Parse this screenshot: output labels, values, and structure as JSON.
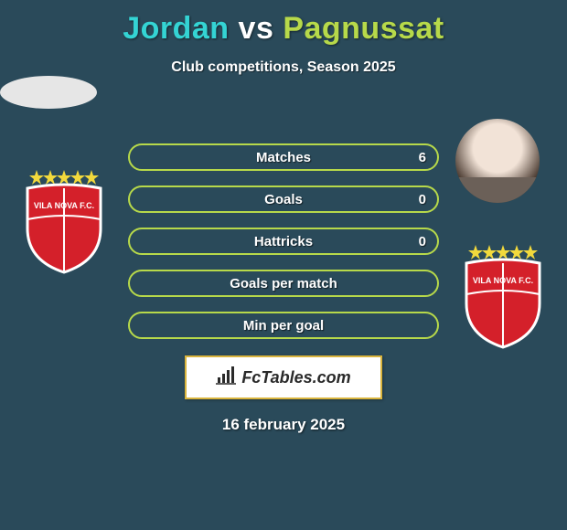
{
  "background_color": "#2a4a5a",
  "title": {
    "player1": "Jordan",
    "vs": "vs",
    "player2": "Pagnussat",
    "player1_color": "#34d4d4",
    "vs_color": "#ffffff",
    "player2_color": "#b7d94a",
    "fontsize": 34
  },
  "subtitle": "Club competitions, Season 2025",
  "stats": {
    "row_border_color": "#b7d94a",
    "row_bg_color": "transparent",
    "label_color": "#ffffff",
    "label_fontsize": 15,
    "value_fontsize": 15,
    "rows": [
      {
        "label": "Matches",
        "left": "",
        "right": "6"
      },
      {
        "label": "Goals",
        "left": "",
        "right": "0"
      },
      {
        "label": "Hattricks",
        "left": "",
        "right": "0"
      },
      {
        "label": "Goals per match",
        "left": "",
        "right": ""
      },
      {
        "label": "Min per goal",
        "left": "",
        "right": ""
      }
    ]
  },
  "club": {
    "name": "VILA NOVA F.C.",
    "shield_fill": "#d4202a",
    "shield_border": "#ffffff",
    "stars_color": "#f2d93c"
  },
  "brand": {
    "text": "FcTables.com",
    "icon": "bar-chart-icon",
    "bg": "#ffffff",
    "border": "#d9b43c",
    "text_color": "#2a2a2a"
  },
  "date": "16 february 2025"
}
